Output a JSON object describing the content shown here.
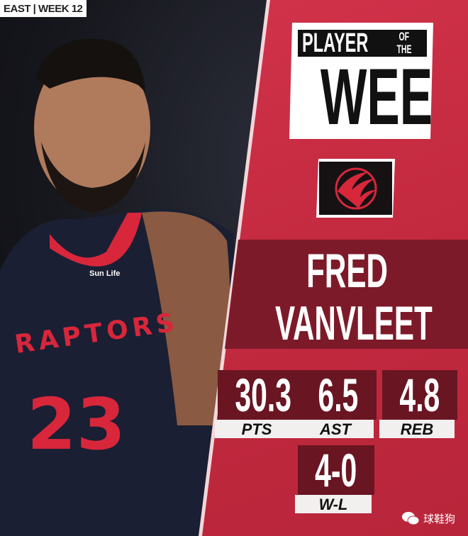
{
  "header": {
    "tag": "EAST | WEEK 12"
  },
  "title": {
    "line1": "PLAYER",
    "line1_small_a": "OF",
    "line1_small_b": "THE",
    "line2": "WEEK"
  },
  "team_logo": {
    "icon": "raptors-basketball-claw-logo",
    "color": "#d8263b"
  },
  "player": {
    "first_name": "FRED",
    "last_name": "VANVLEET"
  },
  "jersey": {
    "team": "RAPTORS",
    "number": "23",
    "sponsor": "Sun Life"
  },
  "stats": [
    {
      "value": "30.3",
      "label": "PTS"
    },
    {
      "value": "6.5",
      "label": "AST"
    },
    {
      "value": "4.8",
      "label": "REB"
    },
    {
      "value": "4-0",
      "label": "W-L"
    }
  ],
  "watermark": {
    "icon": "wechat-icon",
    "text": "球鞋狗"
  },
  "colors": {
    "panel": "#c42a40",
    "band": "#7d1a29",
    "stat_box": "#6a1522"
  }
}
